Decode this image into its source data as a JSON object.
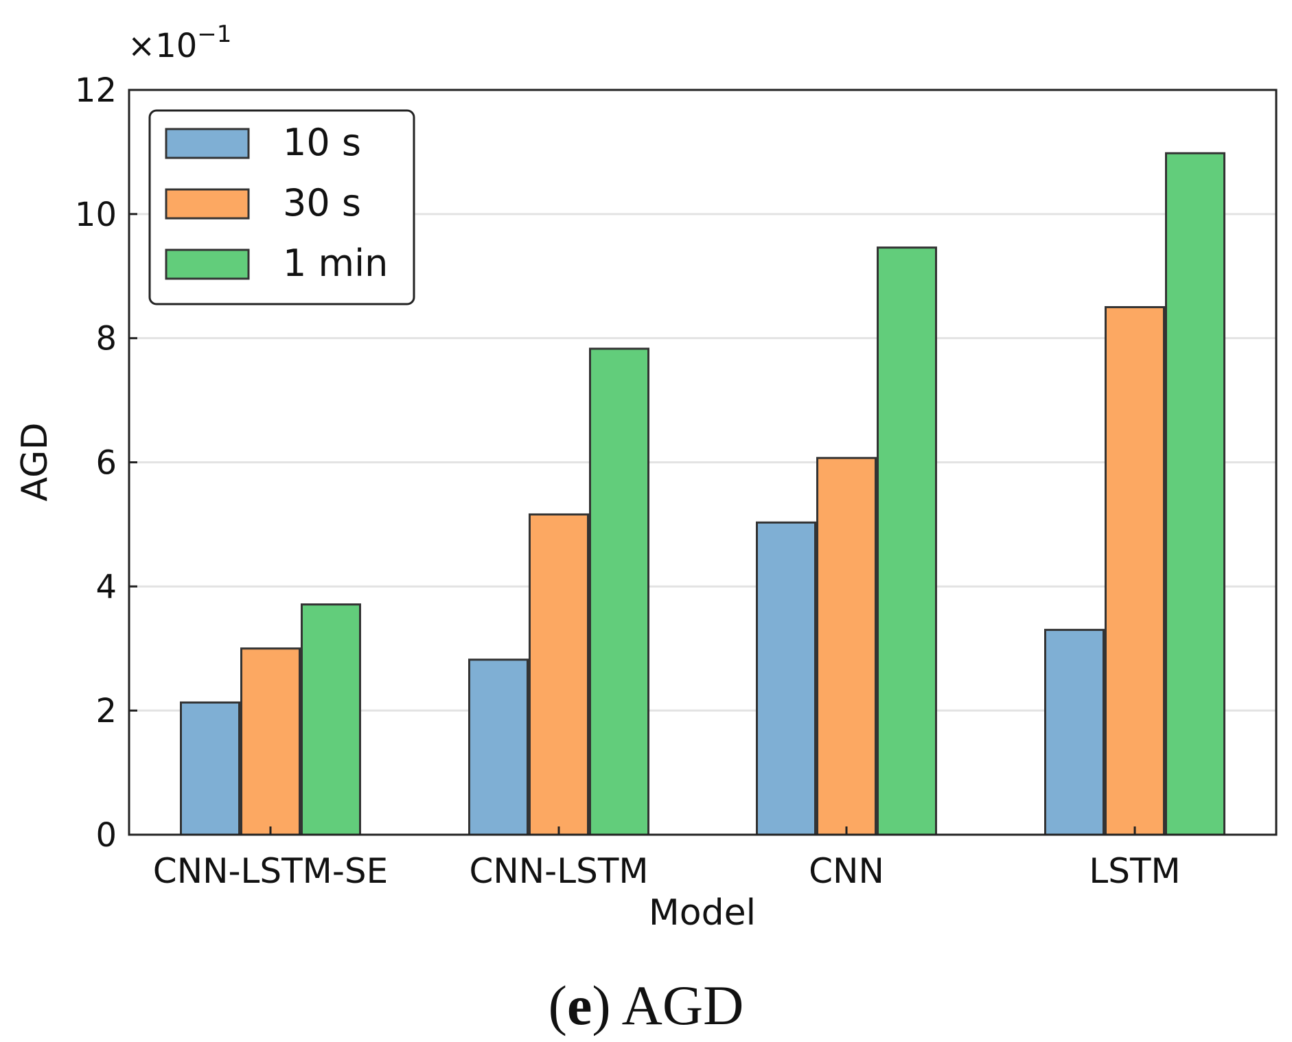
{
  "chart_data": {
    "type": "bar",
    "title": "",
    "caption_label": "(e)",
    "caption_text": "AGD",
    "xlabel": "Model",
    "ylabel": "AGD",
    "y_multiplier": "×10",
    "y_multiplier_exp": "−1",
    "ylim": [
      0,
      12
    ],
    "yticks": [
      0,
      2,
      4,
      6,
      8,
      10,
      12
    ],
    "grid": "horizontal",
    "legend_position": "top-left",
    "categories": [
      "CNN-LSTM-SE",
      "CNN-LSTM",
      "CNN",
      "LSTM"
    ],
    "series": [
      {
        "name": "10 s",
        "color": "#7fafd4",
        "values": [
          2.13,
          2.82,
          5.03,
          3.3
        ]
      },
      {
        "name": "30 s",
        "color": "#fca862",
        "values": [
          3.0,
          5.16,
          6.07,
          8.5
        ]
      },
      {
        "name": "1 min",
        "color": "#62cd7b",
        "values": [
          3.71,
          7.83,
          9.46,
          10.98
        ]
      }
    ]
  }
}
